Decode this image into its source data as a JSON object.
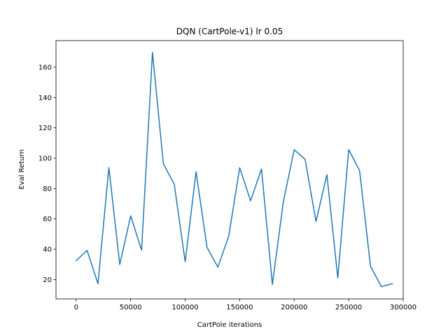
{
  "chart_data": {
    "type": "line",
    "title": "DQN (CartPole-v1) lr 0.05",
    "xlabel": "CartPole iterations",
    "ylabel": "Eval Return",
    "xlim": [
      -18500,
      300000
    ],
    "ylim": [
      7.3,
      177.5
    ],
    "xticks": [
      0,
      50000,
      100000,
      150000,
      200000,
      250000,
      300000
    ],
    "xtick_labels": [
      "0",
      "50000",
      "100000",
      "150000",
      "200000",
      "250000",
      "300000"
    ],
    "yticks": [
      20,
      40,
      60,
      80,
      100,
      120,
      140,
      160
    ],
    "ytick_labels": [
      "20",
      "40",
      "60",
      "80",
      "100",
      "120",
      "140",
      "160"
    ],
    "grid": false,
    "legend": "none",
    "color": "#1f77b4",
    "series": [
      {
        "x": [
          0,
          10000,
          20000,
          30000,
          40000,
          50000,
          60000,
          70000,
          80000,
          90000,
          100000,
          110000,
          120000,
          130000,
          140000,
          150000,
          160000,
          170000,
          180000,
          190000,
          200000,
          210000,
          220000,
          230000,
          240000,
          250000,
          260000,
          270000,
          280000,
          290000
        ],
        "values": [
          32.5,
          39.3,
          17.3,
          93.8,
          29.9,
          62.0,
          39.4,
          169.7,
          96.3,
          82.8,
          31.8,
          91.1,
          41.3,
          28.2,
          48.8,
          93.7,
          71.9,
          92.9,
          16.8,
          71.1,
          105.6,
          99.3,
          58.3,
          89.2,
          21.1,
          105.7,
          91.8,
          28.8,
          15.4,
          17.3
        ]
      }
    ]
  }
}
